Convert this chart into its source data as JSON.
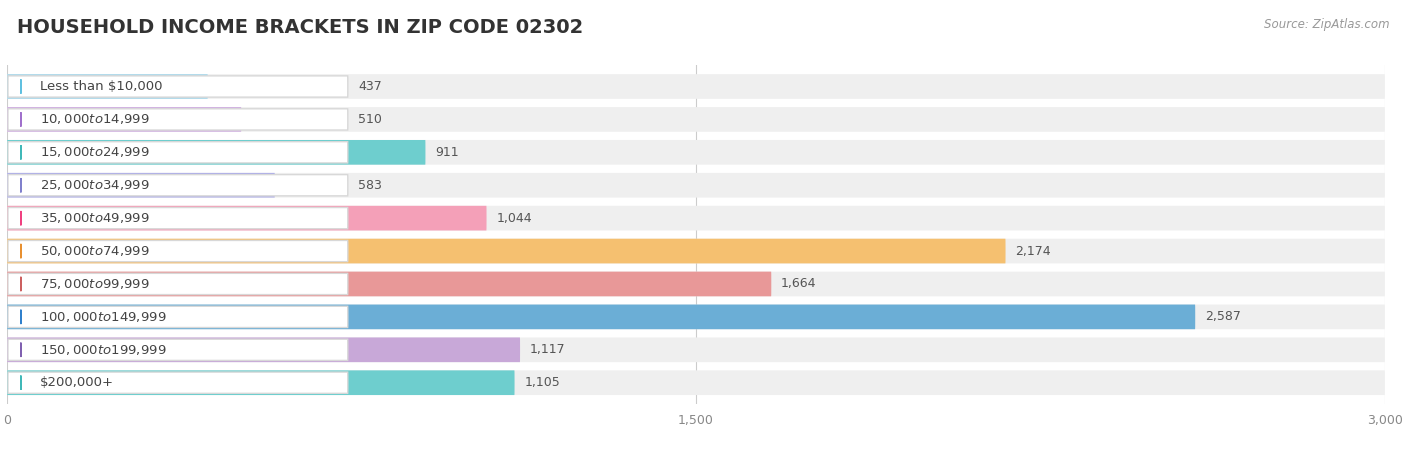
{
  "title": "HOUSEHOLD INCOME BRACKETS IN ZIP CODE 02302",
  "source": "Source: ZipAtlas.com",
  "categories": [
    "Less than $10,000",
    "$10,000 to $14,999",
    "$15,000 to $24,999",
    "$25,000 to $34,999",
    "$35,000 to $49,999",
    "$50,000 to $74,999",
    "$75,000 to $99,999",
    "$100,000 to $149,999",
    "$150,000 to $199,999",
    "$200,000+"
  ],
  "values": [
    437,
    510,
    911,
    583,
    1044,
    2174,
    1664,
    2587,
    1117,
    1105
  ],
  "bar_colors": [
    "#a8d8ea",
    "#d0b0e0",
    "#6ecece",
    "#b0b0e8",
    "#f4a0b8",
    "#f5c070",
    "#e89898",
    "#6baed6",
    "#c8a8d8",
    "#6ecece"
  ],
  "label_circle_colors": [
    "#60c0e0",
    "#a070cc",
    "#40b8b8",
    "#8080cc",
    "#f04080",
    "#e89030",
    "#cc6060",
    "#3080cc",
    "#8060b0",
    "#40b8b8"
  ],
  "bg_color": "#ffffff",
  "bar_bg_color": "#efefef",
  "xlim": [
    0,
    3000
  ],
  "xticks": [
    0,
    1500,
    3000
  ],
  "title_fontsize": 14,
  "label_fontsize": 9.5,
  "value_fontsize": 9
}
